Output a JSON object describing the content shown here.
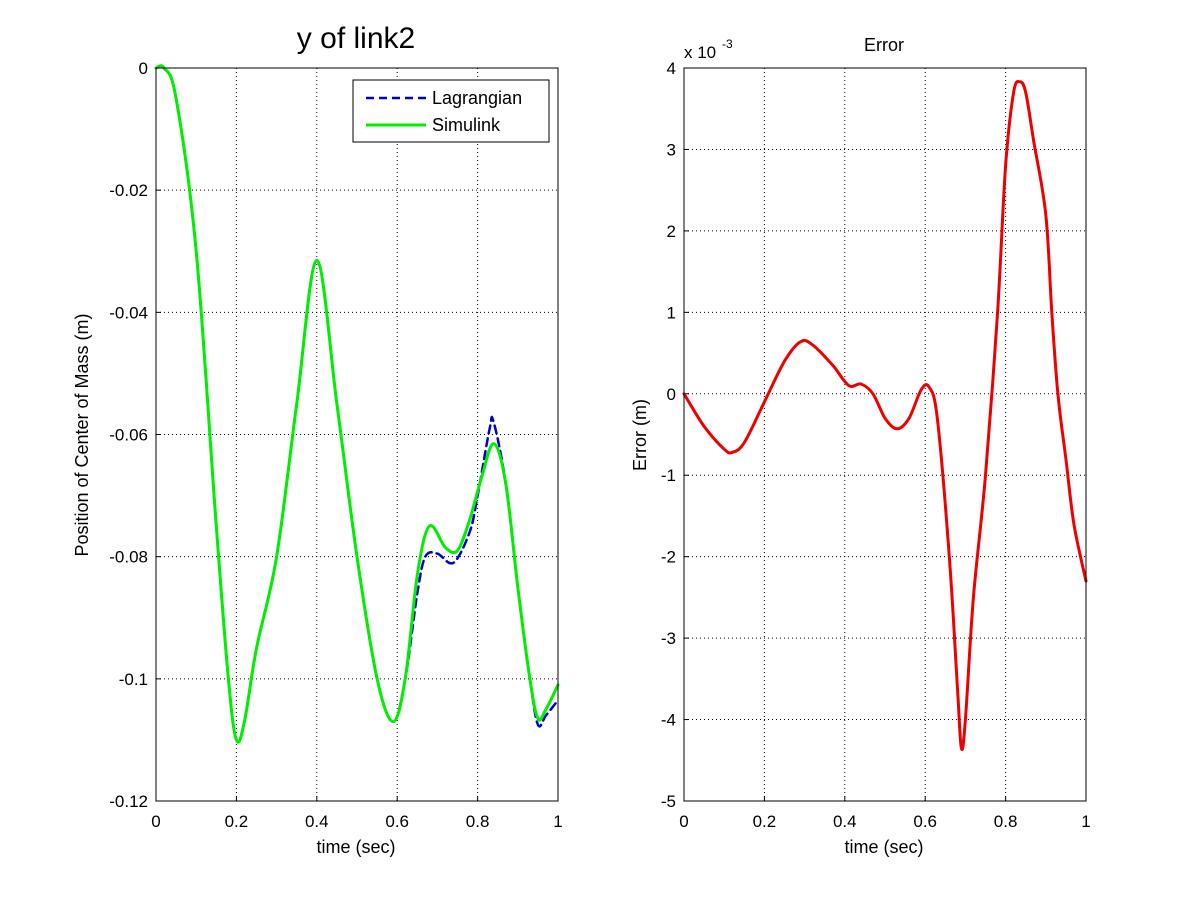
{
  "chart_data": [
    {
      "type": "line",
      "title": "y of link2",
      "xlabel": "time (sec)",
      "ylabel": "Position of Center of Mass (m)",
      "xlim": [
        0,
        1
      ],
      "ylim": [
        -0.12,
        0
      ],
      "x_ticks": [
        "0",
        "0.2",
        "0.4",
        "0.6",
        "0.8",
        "1"
      ],
      "y_ticks": [
        "0",
        "-0.02",
        "-0.04",
        "-0.06",
        "-0.08",
        "-0.1",
        "-0.12"
      ],
      "grid": true,
      "legend": "top-right",
      "series": [
        {
          "name": "Lagrangian",
          "color": "#0000cc",
          "style": "dashed",
          "points": [
            [
              0,
              0
            ],
            [
              0.02,
              0
            ],
            [
              0.05,
              -0.005
            ],
            [
              0.1,
              -0.03
            ],
            [
              0.15,
              -0.075
            ],
            [
              0.18,
              -0.1
            ],
            [
              0.2,
              -0.11
            ],
            [
              0.22,
              -0.107
            ],
            [
              0.25,
              -0.095
            ],
            [
              0.3,
              -0.08
            ],
            [
              0.35,
              -0.055
            ],
            [
              0.4,
              -0.0315
            ],
            [
              0.45,
              -0.055
            ],
            [
              0.5,
              -0.08
            ],
            [
              0.55,
              -0.1
            ],
            [
              0.59,
              -0.107
            ],
            [
              0.62,
              -0.1
            ],
            [
              0.65,
              -0.086
            ],
            [
              0.67,
              -0.08
            ],
            [
              0.7,
              -0.0795
            ],
            [
              0.74,
              -0.081
            ],
            [
              0.78,
              -0.076
            ],
            [
              0.8,
              -0.07
            ],
            [
              0.83,
              -0.059
            ],
            [
              0.84,
              -0.058
            ],
            [
              0.87,
              -0.068
            ],
            [
              0.9,
              -0.085
            ],
            [
              0.93,
              -0.1
            ],
            [
              0.95,
              -0.1075
            ],
            [
              0.97,
              -0.106
            ],
            [
              1.0,
              -0.1035
            ]
          ]
        },
        {
          "name": "Simulink",
          "color": "#00ee00",
          "style": "solid",
          "points": [
            [
              0,
              0
            ],
            [
              0.02,
              0
            ],
            [
              0.05,
              -0.005
            ],
            [
              0.1,
              -0.03
            ],
            [
              0.15,
              -0.075
            ],
            [
              0.18,
              -0.1
            ],
            [
              0.2,
              -0.11
            ],
            [
              0.22,
              -0.107
            ],
            [
              0.25,
              -0.095
            ],
            [
              0.3,
              -0.08
            ],
            [
              0.35,
              -0.055
            ],
            [
              0.4,
              -0.0315
            ],
            [
              0.45,
              -0.055
            ],
            [
              0.5,
              -0.08
            ],
            [
              0.55,
              -0.1
            ],
            [
              0.59,
              -0.107
            ],
            [
              0.62,
              -0.1
            ],
            [
              0.65,
              -0.083
            ],
            [
              0.68,
              -0.075
            ],
            [
              0.72,
              -0.0785
            ],
            [
              0.75,
              -0.079
            ],
            [
              0.78,
              -0.074
            ],
            [
              0.81,
              -0.067
            ],
            [
              0.84,
              -0.0615
            ],
            [
              0.87,
              -0.068
            ],
            [
              0.9,
              -0.085
            ],
            [
              0.93,
              -0.1
            ],
            [
              0.95,
              -0.1065
            ],
            [
              0.97,
              -0.105
            ],
            [
              1.0,
              -0.101
            ]
          ]
        }
      ]
    },
    {
      "type": "line",
      "title": "Error",
      "xlabel": "time (sec)",
      "ylabel": "Error (m)",
      "y_multiplier": "x 10",
      "y_exponent": "-3",
      "xlim": [
        0,
        1
      ],
      "ylim": [
        -5,
        4
      ],
      "x_ticks": [
        "0",
        "0.2",
        "0.4",
        "0.6",
        "0.8",
        "1"
      ],
      "y_ticks": [
        "4",
        "3",
        "2",
        "1",
        "0",
        "-1",
        "-2",
        "-3",
        "-4",
        "-5"
      ],
      "grid": true,
      "series": [
        {
          "color": "#ee0000",
          "style": "solid",
          "points": [
            [
              0,
              0
            ],
            [
              0.05,
              -0.4
            ],
            [
              0.1,
              -0.68
            ],
            [
              0.12,
              -0.72
            ],
            [
              0.15,
              -0.6
            ],
            [
              0.2,
              -0.1
            ],
            [
              0.25,
              0.4
            ],
            [
              0.29,
              0.64
            ],
            [
              0.32,
              0.6
            ],
            [
              0.37,
              0.35
            ],
            [
              0.41,
              0.1
            ],
            [
              0.44,
              0.12
            ],
            [
              0.47,
              0.0
            ],
            [
              0.5,
              -0.3
            ],
            [
              0.53,
              -0.43
            ],
            [
              0.56,
              -0.3
            ],
            [
              0.59,
              0.05
            ],
            [
              0.61,
              0.08
            ],
            [
              0.63,
              -0.3
            ],
            [
              0.66,
              -2.0
            ],
            [
              0.68,
              -3.6
            ],
            [
              0.69,
              -4.35
            ],
            [
              0.7,
              -4.0
            ],
            [
              0.72,
              -2.5
            ],
            [
              0.75,
              -1.0
            ],
            [
              0.78,
              1.0
            ],
            [
              0.8,
              2.8
            ],
            [
              0.82,
              3.7
            ],
            [
              0.835,
              3.83
            ],
            [
              0.85,
              3.7
            ],
            [
              0.87,
              3.1
            ],
            [
              0.9,
              2.2
            ],
            [
              0.915,
              1.0
            ],
            [
              0.93,
              0.0
            ],
            [
              0.95,
              -0.8
            ],
            [
              0.97,
              -1.6
            ],
            [
              1.0,
              -2.3
            ]
          ]
        }
      ]
    }
  ]
}
